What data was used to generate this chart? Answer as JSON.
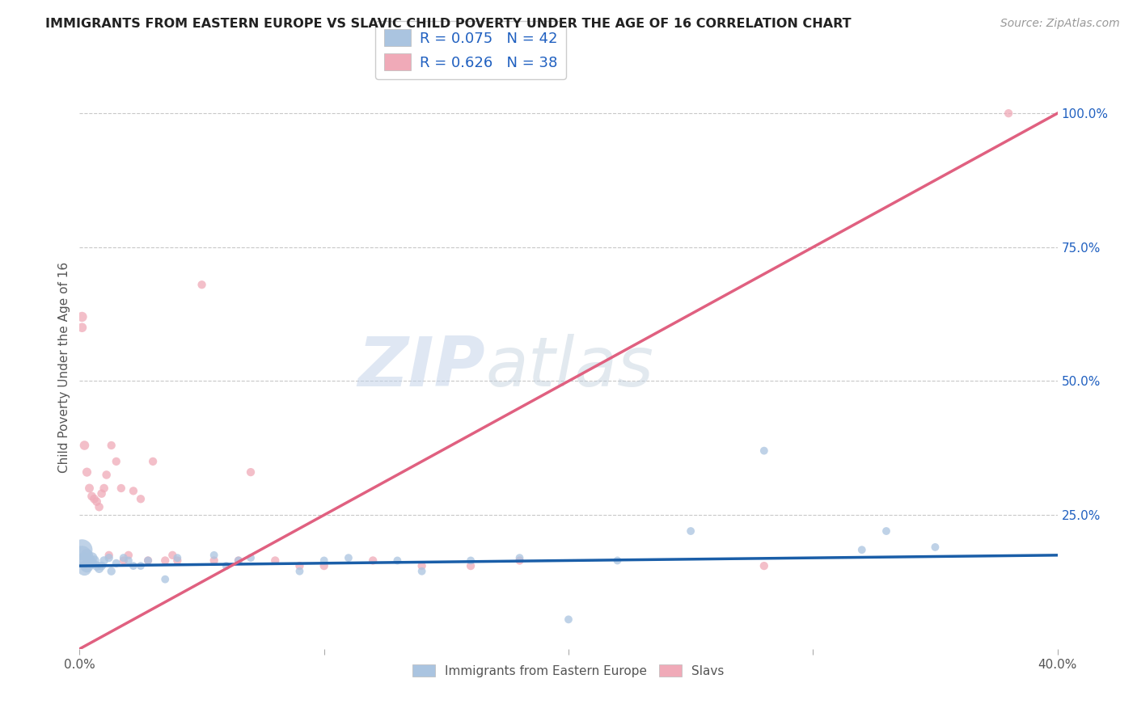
{
  "title": "IMMIGRANTS FROM EASTERN EUROPE VS SLAVIC CHILD POVERTY UNDER THE AGE OF 16 CORRELATION CHART",
  "source": "Source: ZipAtlas.com",
  "ylabel": "Child Poverty Under the Age of 16",
  "xlim": [
    0.0,
    0.4
  ],
  "ylim": [
    0.0,
    1.05
  ],
  "xticks": [
    0.0,
    0.1,
    0.2,
    0.3,
    0.4
  ],
  "xticklabels": [
    "0.0%",
    "",
    "",
    "",
    "40.0%"
  ],
  "ytick_positions": [
    0.25,
    0.5,
    0.75,
    1.0
  ],
  "yticklabels_right": [
    "25.0%",
    "50.0%",
    "75.0%",
    "100.0%"
  ],
  "grid_color": "#c8c8c8",
  "background_color": "#ffffff",
  "watermark_zip": "ZIP",
  "watermark_atlas": "atlas",
  "blue_color": "#aac4e0",
  "blue_line_color": "#1a5ea8",
  "pink_color": "#f0aab8",
  "pink_line_color": "#e06080",
  "legend_text_color": "#2060c0",
  "R_blue": 0.075,
  "N_blue": 42,
  "R_pink": 0.626,
  "N_pink": 38,
  "blue_line_x0": 0.0,
  "blue_line_y0": 0.155,
  "blue_line_x1": 0.4,
  "blue_line_y1": 0.175,
  "pink_line_x0": 0.0,
  "pink_line_y0": 0.0,
  "pink_line_x1": 0.4,
  "pink_line_y1": 1.0,
  "blue_x": [
    0.001,
    0.001,
    0.002,
    0.002,
    0.003,
    0.003,
    0.004,
    0.005,
    0.005,
    0.006,
    0.007,
    0.008,
    0.009,
    0.01,
    0.012,
    0.013,
    0.015,
    0.018,
    0.02,
    0.022,
    0.025,
    0.028,
    0.035,
    0.04,
    0.055,
    0.06,
    0.065,
    0.07,
    0.09,
    0.1,
    0.11,
    0.13,
    0.14,
    0.16,
    0.18,
    0.2,
    0.22,
    0.25,
    0.28,
    0.32,
    0.33,
    0.35
  ],
  "blue_y": [
    0.185,
    0.175,
    0.165,
    0.15,
    0.155,
    0.175,
    0.165,
    0.17,
    0.16,
    0.165,
    0.155,
    0.15,
    0.155,
    0.165,
    0.17,
    0.145,
    0.16,
    0.17,
    0.165,
    0.155,
    0.155,
    0.165,
    0.13,
    0.17,
    0.175,
    0.155,
    0.165,
    0.17,
    0.145,
    0.165,
    0.17,
    0.165,
    0.145,
    0.165,
    0.17,
    0.055,
    0.165,
    0.22,
    0.37,
    0.185,
    0.22,
    0.19
  ],
  "blue_size": [
    350,
    280,
    200,
    160,
    140,
    120,
    110,
    100,
    90,
    80,
    70,
    65,
    60,
    58,
    55,
    55,
    52,
    52,
    50,
    50,
    50,
    50,
    50,
    50,
    50,
    50,
    50,
    50,
    50,
    50,
    50,
    50,
    50,
    50,
    50,
    50,
    50,
    50,
    50,
    50,
    50,
    50
  ],
  "pink_x": [
    0.001,
    0.001,
    0.002,
    0.003,
    0.004,
    0.005,
    0.006,
    0.007,
    0.008,
    0.009,
    0.01,
    0.011,
    0.012,
    0.013,
    0.015,
    0.017,
    0.018,
    0.02,
    0.022,
    0.025,
    0.028,
    0.03,
    0.035,
    0.038,
    0.04,
    0.05,
    0.055,
    0.065,
    0.07,
    0.08,
    0.09,
    0.1,
    0.12,
    0.14,
    0.16,
    0.18,
    0.28,
    0.38
  ],
  "pink_y": [
    0.62,
    0.6,
    0.38,
    0.33,
    0.3,
    0.285,
    0.28,
    0.275,
    0.265,
    0.29,
    0.3,
    0.325,
    0.175,
    0.38,
    0.35,
    0.3,
    0.165,
    0.175,
    0.295,
    0.28,
    0.165,
    0.35,
    0.165,
    0.175,
    0.165,
    0.68,
    0.165,
    0.165,
    0.33,
    0.165,
    0.155,
    0.155,
    0.165,
    0.155,
    0.155,
    0.165,
    0.155,
    1.0
  ],
  "pink_size": [
    80,
    70,
    70,
    65,
    62,
    60,
    60,
    60,
    58,
    58,
    58,
    58,
    55,
    55,
    55,
    55,
    55,
    55,
    55,
    55,
    55,
    55,
    55,
    55,
    55,
    55,
    55,
    55,
    55,
    55,
    55,
    55,
    55,
    55,
    55,
    55,
    55,
    55
  ]
}
